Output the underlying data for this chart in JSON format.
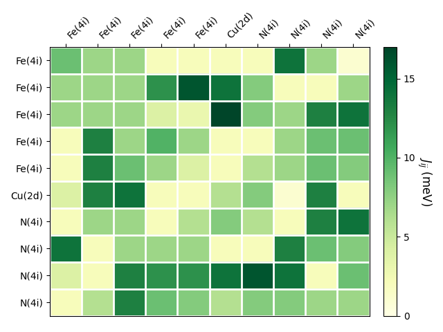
{
  "labels": [
    "Fe(4i)",
    "Fe(4i)",
    "Fe(4i)",
    "Fe(4i)",
    "Fe(4i)",
    "Cu(2d)",
    "N(4i)",
    "N(4i)",
    "N(4i)",
    "N(4i)"
  ],
  "matrix": [
    [
      9,
      7,
      7,
      2,
      2,
      2,
      2,
      14,
      7,
      1
    ],
    [
      7,
      7,
      7,
      12,
      16,
      14,
      8,
      2,
      2,
      7
    ],
    [
      7,
      7,
      7,
      4,
      3,
      17,
      8,
      7,
      13,
      14
    ],
    [
      2,
      13,
      7,
      10,
      7,
      2,
      2,
      7,
      9,
      9
    ],
    [
      2,
      13,
      9,
      7,
      4,
      2,
      6,
      7,
      9,
      8
    ],
    [
      4,
      13,
      14,
      2,
      2,
      6,
      8,
      1,
      13,
      2
    ],
    [
      2,
      7,
      7,
      2,
      6,
      8,
      6,
      2,
      13,
      14
    ],
    [
      14,
      2,
      7,
      7,
      7,
      2,
      2,
      13,
      9,
      8
    ],
    [
      4,
      2,
      13,
      12,
      12,
      14,
      16,
      14,
      2,
      9
    ],
    [
      2,
      6,
      13,
      9,
      8,
      6,
      8,
      8,
      7,
      7
    ]
  ],
  "vmin": 0,
  "vmax": 17,
  "cbar_label": "$J_{ij}$ (meV)",
  "cbar_ticks": [
    0,
    5,
    10,
    15
  ],
  "colormap": "YlGn",
  "figsize": [
    6.4,
    4.8
  ],
  "dpi": 100
}
